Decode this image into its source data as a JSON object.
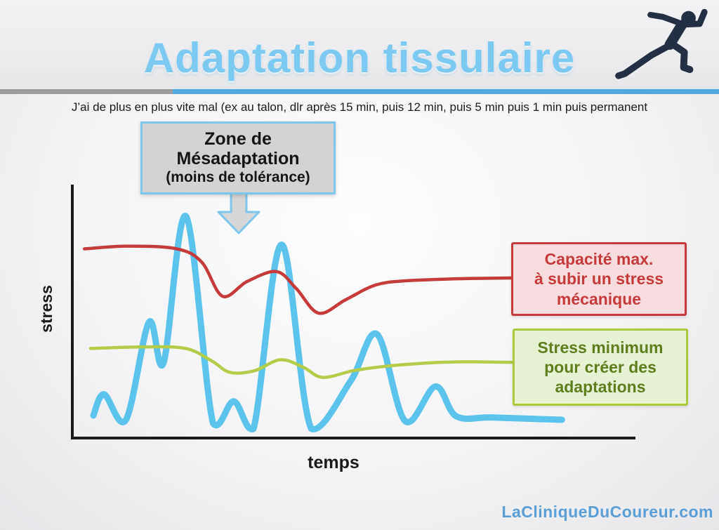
{
  "header": {
    "title": "Adaptation tissulaire",
    "title_color": "#7CCAF1",
    "underline_blue": "#4FA8DE",
    "underline_gray": "#9B9B9B",
    "runner_icon": "sprinting-runner-silhouette"
  },
  "note_line": "J’ai de plus en plus vite mal (ex au talon, dlr après 15 min, puis 12 min, puis 5 min puis 1 min puis permanent",
  "callout": {
    "line1": "Zone de",
    "line2": "Mésadaptation",
    "line3": "(moins de tolérance)",
    "fill": "#D3D3D4",
    "border": "#7FC6EA"
  },
  "legend_boxes": {
    "capacity": {
      "line1": "Capacité max.",
      "line2": "à subir un stress",
      "line3": "mécanique",
      "text_color": "#C53B3B",
      "fill": "#F8DCE0"
    },
    "minimum": {
      "line1": "Stress minimum",
      "line2": "pour créer des",
      "line3": "adaptations",
      "text_color": "#5E7E1C",
      "fill": "#E6F2D3"
    }
  },
  "watermark": "LaCliniqueDuCoureur.com",
  "chart_data": {
    "type": "line",
    "title": "",
    "xlabel": "temps",
    "ylabel": "stress",
    "xlim": [
      0,
      100
    ],
    "ylim": [
      0,
      100
    ],
    "grid": false,
    "legend_position": "right-boxes",
    "series": [
      {
        "name": "applied-stress",
        "label": "",
        "color": "#5CC3EC",
        "stroke_width": 9,
        "points": [
          [
            3.5,
            8.4
          ],
          [
            5.4,
            16.8
          ],
          [
            9.3,
            6.7
          ],
          [
            13.4,
            45.4
          ],
          [
            16,
            29.4
          ],
          [
            20,
            87.4
          ],
          [
            24.8,
            5.3
          ],
          [
            28.5,
            14
          ],
          [
            32,
            3.1
          ],
          [
            37,
            76.2
          ],
          [
            42.3,
            3.1
          ],
          [
            49.3,
            22.1
          ],
          [
            54,
            40.6
          ],
          [
            59,
            6.2
          ],
          [
            64.4,
            19.9
          ],
          [
            68.1,
            8.1
          ],
          [
            74.6,
            7.6
          ],
          [
            86.9,
            6.7
          ]
        ]
      },
      {
        "name": "capacite-max-stress-mecanique",
        "label": "Capacité max. à subir un stress mécanique",
        "color": "#C53B3B",
        "stroke_width": 4.5,
        "points": [
          [
            1.9,
            74.5
          ],
          [
            9.6,
            75.6
          ],
          [
            18.4,
            74.5
          ],
          [
            22.8,
            69.2
          ],
          [
            26.5,
            55.7
          ],
          [
            30.9,
            61.6
          ],
          [
            36.1,
            65.5
          ],
          [
            39.6,
            58.8
          ],
          [
            43.6,
            49
          ],
          [
            48.4,
            54.3
          ],
          [
            53.8,
            60.2
          ],
          [
            59.6,
            61.9
          ],
          [
            69.6,
            62.7
          ],
          [
            79.6,
            63
          ]
        ]
      },
      {
        "name": "stress-minimum-adaptations",
        "label": "Stress minimum pour créer des adaptations",
        "color": "#B3CC49",
        "stroke_width": 4.5,
        "points": [
          [
            3,
            35
          ],
          [
            12.1,
            35.6
          ],
          [
            19.9,
            35
          ],
          [
            24.6,
            30
          ],
          [
            27.8,
            25.5
          ],
          [
            32.1,
            26.1
          ],
          [
            36.8,
            30.5
          ],
          [
            40.9,
            27.5
          ],
          [
            44.3,
            23.5
          ],
          [
            49.6,
            26.1
          ],
          [
            54.6,
            27.7
          ],
          [
            62.1,
            29.1
          ],
          [
            69.6,
            29.7
          ],
          [
            79.6,
            29.4
          ]
        ]
      }
    ]
  }
}
